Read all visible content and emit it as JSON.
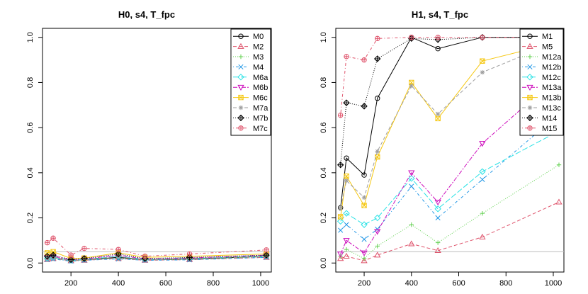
{
  "chart_data": [
    {
      "type": "line",
      "title": "H0, s4, T_fpc",
      "xlabel": "",
      "ylabel": "",
      "xlim": [
        80,
        1045
      ],
      "ylim": [
        -0.04,
        1.04
      ],
      "xticks": [
        200,
        400,
        600,
        800,
        1000
      ],
      "yticks": [
        0.0,
        0.2,
        0.4,
        0.6,
        0.8,
        1.0
      ],
      "xtick_labels": [
        "200",
        "400",
        "600",
        "800",
        "1000"
      ],
      "ytick_labels": [
        "0.0",
        "0.2",
        "0.4",
        "0.6",
        "0.8",
        "1.0"
      ],
      "legend_position": "top-right",
      "hline": 0.05,
      "x": [
        100,
        125,
        200,
        256,
        400,
        512,
        700,
        1024
      ],
      "series": [
        {
          "name": "M0",
          "color": "#000000",
          "marker": "circle",
          "dash": "",
          "values": [
            0.02,
            0.025,
            0.012,
            0.015,
            0.025,
            0.015,
            0.018,
            0.03
          ]
        },
        {
          "name": "M2",
          "color": "#DF536B",
          "marker": "triangle-up",
          "dash": "5,3",
          "values": [
            0.015,
            0.02,
            0.01,
            0.012,
            0.02,
            0.012,
            0.015,
            0.025
          ]
        },
        {
          "name": "M3",
          "color": "#61D04F",
          "marker": "plus",
          "dash": "1,2",
          "values": [
            0.018,
            0.022,
            0.01,
            0.014,
            0.022,
            0.014,
            0.016,
            0.028
          ]
        },
        {
          "name": "M4",
          "color": "#2297E6",
          "marker": "x",
          "dash": "1,3,4,3",
          "values": [
            0.015,
            0.018,
            0.008,
            0.012,
            0.018,
            0.012,
            0.014,
            0.025
          ]
        },
        {
          "name": "M6a",
          "color": "#28E2E5",
          "marker": "diamond",
          "dash": "8,3",
          "values": [
            0.02,
            0.025,
            0.012,
            0.016,
            0.03,
            0.016,
            0.02,
            0.032
          ]
        },
        {
          "name": "M6b",
          "color": "#CD0BBC",
          "marker": "triangle-down",
          "dash": "6,2,2,2",
          "values": [
            0.025,
            0.03,
            0.015,
            0.018,
            0.035,
            0.018,
            0.022,
            0.035
          ]
        },
        {
          "name": "M6c",
          "color": "#F5C710",
          "marker": "square-x",
          "dash": "",
          "values": [
            0.045,
            0.05,
            0.02,
            0.022,
            0.045,
            0.025,
            0.03,
            0.04
          ]
        },
        {
          "name": "M7a",
          "color": "#9E9E9E",
          "marker": "asterisk",
          "dash": "5,3",
          "values": [
            0.02,
            0.025,
            0.012,
            0.015,
            0.028,
            0.015,
            0.02,
            0.03
          ]
        },
        {
          "name": "M7b",
          "color": "#000000",
          "marker": "diamond-plus",
          "dash": "1,2",
          "values": [
            0.03,
            0.035,
            0.015,
            0.02,
            0.04,
            0.02,
            0.025,
            0.035
          ]
        },
        {
          "name": "M7c",
          "color": "#DF536B",
          "marker": "circle-plus",
          "dash": "1,3,4,3",
          "values": [
            0.09,
            0.11,
            0.035,
            0.065,
            0.06,
            0.03,
            0.04,
            0.058
          ]
        }
      ]
    },
    {
      "type": "line",
      "title": "H1, s4, T_fpc",
      "xlabel": "",
      "ylabel": "",
      "xlim": [
        80,
        1045
      ],
      "ylim": [
        -0.04,
        1.04
      ],
      "xticks": [
        200,
        400,
        600,
        800,
        1000
      ],
      "yticks": [
        0.0,
        0.2,
        0.4,
        0.6,
        0.8,
        1.0
      ],
      "xtick_labels": [
        "200",
        "400",
        "600",
        "800",
        "1000"
      ],
      "ytick_labels": [
        "0.0",
        "0.2",
        "0.4",
        "0.6",
        "0.8",
        "1.0"
      ],
      "legend_position": "top-right",
      "hline": 0.05,
      "x": [
        100,
        125,
        200,
        256,
        400,
        512,
        700,
        1024
      ],
      "series": [
        {
          "name": "M1",
          "color": "#000000",
          "marker": "circle",
          "dash": "",
          "values": [
            0.245,
            0.465,
            0.39,
            0.73,
            1.0,
            0.95,
            1.0,
            1.0
          ]
        },
        {
          "name": "M5",
          "color": "#DF536B",
          "marker": "triangle-up",
          "dash": "5,3",
          "values": [
            0.02,
            0.03,
            0.01,
            0.035,
            0.085,
            0.055,
            0.115,
            0.27
          ]
        },
        {
          "name": "M12a",
          "color": "#61D04F",
          "marker": "plus",
          "dash": "1,2",
          "values": [
            0.03,
            0.06,
            0.02,
            0.075,
            0.17,
            0.09,
            0.22,
            0.435
          ]
        },
        {
          "name": "M12b",
          "color": "#2297E6",
          "marker": "x",
          "dash": "1,3,4,3",
          "values": [
            0.145,
            0.17,
            0.105,
            0.15,
            0.34,
            0.2,
            0.37,
            0.66
          ]
        },
        {
          "name": "M12c",
          "color": "#28E2E5",
          "marker": "diamond",
          "dash": "8,3",
          "values": [
            0.185,
            0.22,
            0.17,
            0.2,
            0.375,
            0.24,
            0.405,
            0.585
          ]
        },
        {
          "name": "M13a",
          "color": "#CD0BBC",
          "marker": "triangle-down",
          "dash": "6,2,2,2",
          "values": [
            0.04,
            0.1,
            0.045,
            0.14,
            0.4,
            0.27,
            0.53,
            0.83
          ]
        },
        {
          "name": "M13b",
          "color": "#F5C710",
          "marker": "square-x",
          "dash": "",
          "values": [
            0.205,
            0.385,
            0.255,
            0.47,
            0.8,
            0.64,
            0.895,
            0.98
          ]
        },
        {
          "name": "M13c",
          "color": "#9E9E9E",
          "marker": "asterisk",
          "dash": "5,3",
          "values": [
            0.245,
            0.365,
            0.29,
            0.495,
            0.785,
            0.66,
            0.845,
            0.985
          ]
        },
        {
          "name": "M14",
          "color": "#000000",
          "marker": "diamond-plus",
          "dash": "1,2",
          "values": [
            0.435,
            0.71,
            0.695,
            0.905,
            0.995,
            0.99,
            1.0,
            1.0
          ]
        },
        {
          "name": "M15",
          "color": "#DF536B",
          "marker": "circle-plus",
          "dash": "1,3,4,3",
          "values": [
            0.655,
            0.915,
            0.9,
            0.995,
            1.0,
            1.0,
            1.0,
            1.0
          ]
        }
      ]
    }
  ]
}
